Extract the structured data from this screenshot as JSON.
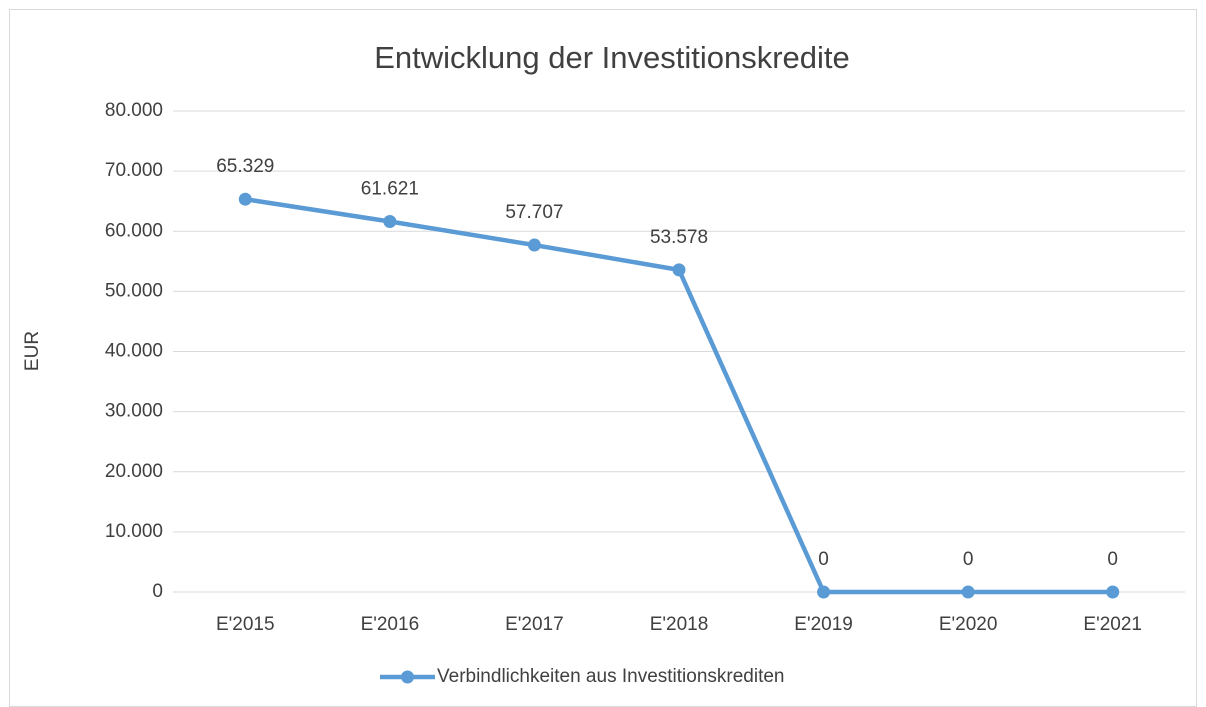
{
  "chart_data": {
    "type": "line",
    "title": "Entwicklung der Investitionskredite",
    "ylabel": "EUR",
    "categories": [
      "E'2015",
      "E'2016",
      "E'2017",
      "E'2018",
      "E'2019",
      "E'2020",
      "E'2021"
    ],
    "series": [
      {
        "name": "Verbindlichkeiten aus Investitionskrediten",
        "color": "#5b9bd5",
        "values": [
          65329,
          61621,
          57707,
          53578,
          0,
          0,
          0
        ],
        "value_labels": [
          "65.329",
          "61.621",
          "57.707",
          "53.578",
          "0",
          "0",
          "0"
        ]
      }
    ],
    "ylim": [
      0,
      80000
    ],
    "yticks": [
      0,
      {
        "value": 10000,
        "label": "10.000"
      },
      {
        "value": 20000,
        "label": "20.000"
      },
      {
        "value": 30000,
        "label": "30.000"
      },
      {
        "value": 40000,
        "label": "40.000"
      },
      {
        "value": 50000,
        "label": "50.000"
      },
      {
        "value": 60000,
        "label": "60.000"
      },
      {
        "value": 70000,
        "label": "70.000"
      },
      {
        "value": 80000,
        "label": "80.000"
      }
    ],
    "grid": true,
    "legend": "bottom"
  }
}
